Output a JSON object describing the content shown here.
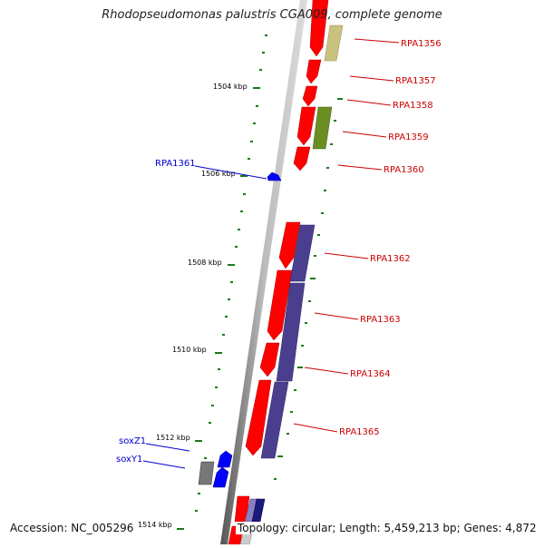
{
  "title": "Rhodopseudomonas palustris CGA009, complete genome",
  "footer": {
    "accession": "Accession: NC_005296",
    "summary": "Topology: circular; Length: 5,459,213 bp; Genes: 4,872"
  },
  "scale_labels": [
    "1504 kbp",
    "1506 kbp",
    "1508 kbp",
    "1510 kbp",
    "1512 kbp",
    "1514 kbp"
  ],
  "gene_labels": {
    "right": [
      "RPA1356",
      "RPA1357",
      "RPA1358",
      "RPA1359",
      "RPA1360",
      "RPA1362",
      "RPA1363",
      "RPA1364",
      "RPA1365"
    ],
    "left": [
      "RPA1361",
      "soxZ1",
      "soxY1"
    ]
  },
  "colors": {
    "forward_gene": "#ff0000",
    "reverse_gene": "#0000ff",
    "cog_purple": "#4a3f8f",
    "cog_olive": "#6b8e23",
    "cog_khaki": "#c9c27f",
    "cog_gray": "#666666",
    "label_red": "#cc0000",
    "label_blue": "#0000cc",
    "tick_green": "#1a7a1a",
    "backbone": "#888888"
  }
}
